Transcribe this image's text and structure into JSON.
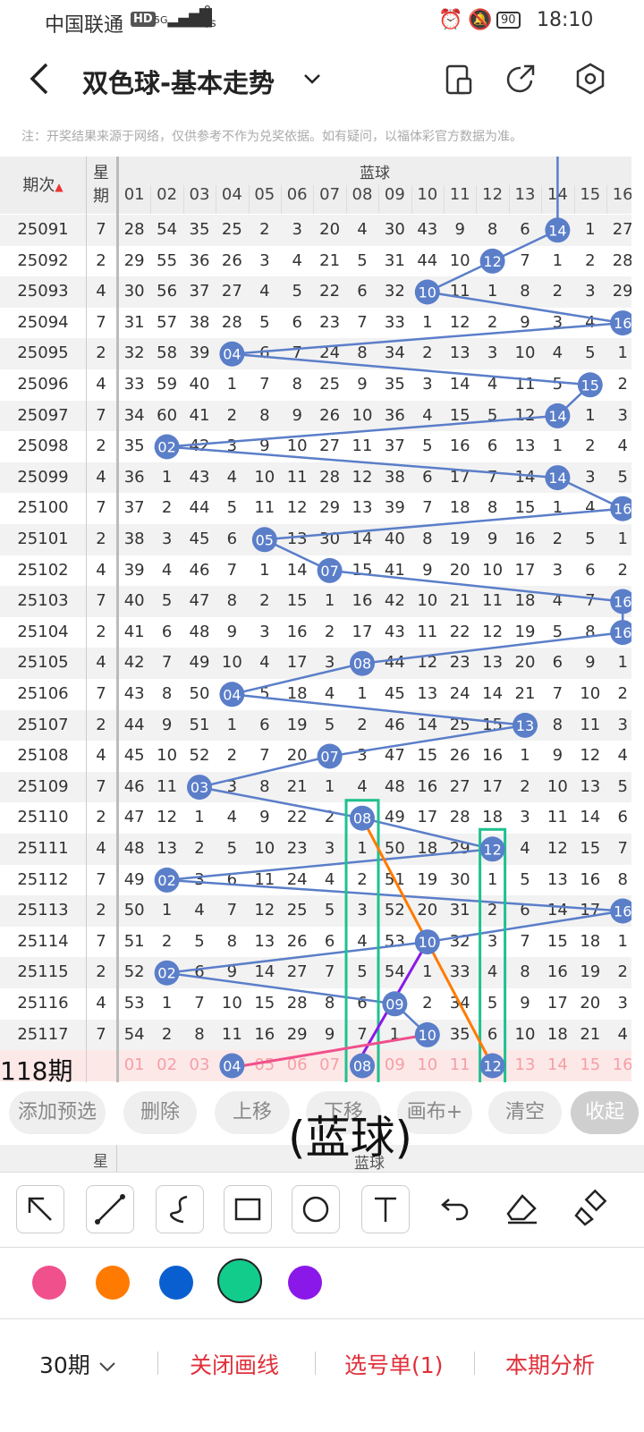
{
  "status": {
    "carrier": "中国联通",
    "hd": "HD",
    "net": "5G",
    "speed_value": "0",
    "speed_unit": "K/s",
    "battery": "90",
    "time": "18:10"
  },
  "header": {
    "title": "双色球-基本走势",
    "icons": [
      "back-icon",
      "dropdown-chevron-icon",
      "device-icon",
      "share-icon",
      "settings-icon"
    ]
  },
  "note": "注：开奖结果来源于网络，仅供参考不作为兑奖依据。如有疑问，以福体彩官方数据为准。",
  "table": {
    "col_period": "期次",
    "col_week": "星期",
    "section": "蓝球",
    "ball_headers": [
      "01",
      "02",
      "03",
      "04",
      "05",
      "06",
      "07",
      "08",
      "09",
      "10",
      "11",
      "12",
      "13",
      "14",
      "15",
      "16"
    ],
    "rows": [
      {
        "p": "25091",
        "w": "7",
        "v": [
          "28",
          "54",
          "35",
          "25",
          "2",
          "3",
          "20",
          "4",
          "30",
          "43",
          "9",
          "8",
          "6",
          "14",
          "1",
          "27"
        ],
        "hit": 14
      },
      {
        "p": "25092",
        "w": "2",
        "v": [
          "29",
          "55",
          "36",
          "26",
          "3",
          "4",
          "21",
          "5",
          "31",
          "44",
          "10",
          "12",
          "7",
          "1",
          "2",
          "28"
        ],
        "hit": 12
      },
      {
        "p": "25093",
        "w": "4",
        "v": [
          "30",
          "56",
          "37",
          "27",
          "4",
          "5",
          "22",
          "6",
          "32",
          "10",
          "11",
          "1",
          "8",
          "2",
          "3",
          "29"
        ],
        "hit": 10
      },
      {
        "p": "25094",
        "w": "7",
        "v": [
          "31",
          "57",
          "38",
          "28",
          "5",
          "6",
          "23",
          "7",
          "33",
          "1",
          "12",
          "2",
          "9",
          "3",
          "4",
          "16"
        ],
        "hit": 16
      },
      {
        "p": "25095",
        "w": "2",
        "v": [
          "32",
          "58",
          "39",
          "04",
          "6",
          "7",
          "24",
          "8",
          "34",
          "2",
          "13",
          "3",
          "10",
          "4",
          "5",
          "1"
        ],
        "hit": 4
      },
      {
        "p": "25096",
        "w": "4",
        "v": [
          "33",
          "59",
          "40",
          "1",
          "7",
          "8",
          "25",
          "9",
          "35",
          "3",
          "14",
          "4",
          "11",
          "5",
          "15",
          "2"
        ],
        "hit": 15
      },
      {
        "p": "25097",
        "w": "7",
        "v": [
          "34",
          "60",
          "41",
          "2",
          "8",
          "9",
          "26",
          "10",
          "36",
          "4",
          "15",
          "5",
          "12",
          "14",
          "1",
          "3"
        ],
        "hit": 14
      },
      {
        "p": "25098",
        "w": "2",
        "v": [
          "35",
          "02",
          "42",
          "3",
          "9",
          "10",
          "27",
          "11",
          "37",
          "5",
          "16",
          "6",
          "13",
          "1",
          "2",
          "4"
        ],
        "hit": 2
      },
      {
        "p": "25099",
        "w": "4",
        "v": [
          "36",
          "1",
          "43",
          "4",
          "10",
          "11",
          "28",
          "12",
          "38",
          "6",
          "17",
          "7",
          "14",
          "14",
          "3",
          "5"
        ],
        "hit": 14
      },
      {
        "p": "25100",
        "w": "7",
        "v": [
          "37",
          "2",
          "44",
          "5",
          "11",
          "12",
          "29",
          "13",
          "39",
          "7",
          "18",
          "8",
          "15",
          "1",
          "4",
          "16"
        ],
        "hit": 16
      },
      {
        "p": "25101",
        "w": "2",
        "v": [
          "38",
          "3",
          "45",
          "6",
          "05",
          "13",
          "30",
          "14",
          "40",
          "8",
          "19",
          "9",
          "16",
          "2",
          "5",
          "1"
        ],
        "hit": 5
      },
      {
        "p": "25102",
        "w": "4",
        "v": [
          "39",
          "4",
          "46",
          "7",
          "1",
          "14",
          "07",
          "15",
          "41",
          "9",
          "20",
          "10",
          "17",
          "3",
          "6",
          "2"
        ],
        "hit": 7
      },
      {
        "p": "25103",
        "w": "7",
        "v": [
          "40",
          "5",
          "47",
          "8",
          "2",
          "15",
          "1",
          "16",
          "42",
          "10",
          "21",
          "11",
          "18",
          "4",
          "7",
          "16"
        ],
        "hit": 16
      },
      {
        "p": "25104",
        "w": "2",
        "v": [
          "41",
          "6",
          "48",
          "9",
          "3",
          "16",
          "2",
          "17",
          "43",
          "11",
          "22",
          "12",
          "19",
          "5",
          "8",
          "16"
        ],
        "hit": 16
      },
      {
        "p": "25105",
        "w": "4",
        "v": [
          "42",
          "7",
          "49",
          "10",
          "4",
          "17",
          "3",
          "08",
          "44",
          "12",
          "23",
          "13",
          "20",
          "6",
          "9",
          "1"
        ],
        "hit": 8
      },
      {
        "p": "25106",
        "w": "7",
        "v": [
          "43",
          "8",
          "50",
          "04",
          "5",
          "18",
          "4",
          "1",
          "45",
          "13",
          "24",
          "14",
          "21",
          "7",
          "10",
          "2"
        ],
        "hit": 4
      },
      {
        "p": "25107",
        "w": "2",
        "v": [
          "44",
          "9",
          "51",
          "1",
          "6",
          "19",
          "5",
          "2",
          "46",
          "14",
          "25",
          "15",
          "13",
          "8",
          "11",
          "3"
        ],
        "hit": 13
      },
      {
        "p": "25108",
        "w": "4",
        "v": [
          "45",
          "10",
          "52",
          "2",
          "7",
          "20",
          "07",
          "3",
          "47",
          "15",
          "26",
          "16",
          "1",
          "9",
          "12",
          "4"
        ],
        "hit": 7
      },
      {
        "p": "25109",
        "w": "7",
        "v": [
          "46",
          "11",
          "03",
          "3",
          "8",
          "21",
          "1",
          "4",
          "48",
          "16",
          "27",
          "17",
          "2",
          "10",
          "13",
          "5"
        ],
        "hit": 3
      },
      {
        "p": "25110",
        "w": "2",
        "v": [
          "47",
          "12",
          "1",
          "4",
          "9",
          "22",
          "2",
          "08",
          "49",
          "17",
          "28",
          "18",
          "3",
          "11",
          "14",
          "6"
        ],
        "hit": 8
      },
      {
        "p": "25111",
        "w": "4",
        "v": [
          "48",
          "13",
          "2",
          "5",
          "10",
          "23",
          "3",
          "1",
          "50",
          "18",
          "29",
          "12",
          "4",
          "12",
          "15",
          "7"
        ],
        "hit": 12
      },
      {
        "p": "25112",
        "w": "7",
        "v": [
          "49",
          "02",
          "3",
          "6",
          "11",
          "24",
          "4",
          "2",
          "51",
          "19",
          "30",
          "1",
          "5",
          "13",
          "16",
          "8"
        ],
        "hit": 2
      },
      {
        "p": "25113",
        "w": "2",
        "v": [
          "50",
          "1",
          "4",
          "7",
          "12",
          "25",
          "5",
          "3",
          "52",
          "20",
          "31",
          "2",
          "6",
          "14",
          "17",
          "16"
        ],
        "hit": 16
      },
      {
        "p": "25114",
        "w": "7",
        "v": [
          "51",
          "2",
          "5",
          "8",
          "13",
          "26",
          "6",
          "4",
          "53",
          "10",
          "32",
          "3",
          "7",
          "15",
          "18",
          "1"
        ],
        "hit": 10
      },
      {
        "p": "25115",
        "w": "2",
        "v": [
          "52",
          "02",
          "6",
          "9",
          "14",
          "27",
          "7",
          "5",
          "54",
          "1",
          "33",
          "4",
          "8",
          "16",
          "19",
          "2"
        ],
        "hit": 2
      },
      {
        "p": "25116",
        "w": "4",
        "v": [
          "53",
          "1",
          "7",
          "10",
          "15",
          "28",
          "8",
          "6",
          "09",
          "2",
          "34",
          "5",
          "9",
          "17",
          "20",
          "3"
        ],
        "hit": 9
      },
      {
        "p": "25117",
        "w": "7",
        "v": [
          "54",
          "2",
          "8",
          "11",
          "16",
          "29",
          "9",
          "7",
          "1",
          "10",
          "35",
          "6",
          "10",
          "18",
          "21",
          "4"
        ],
        "hit": 10
      }
    ],
    "prediction_label": "118期",
    "prediction_values": [
      "01",
      "02",
      "03",
      "04",
      "05",
      "06",
      "07",
      "08",
      "09",
      "10",
      "11",
      "12",
      "13",
      "14",
      "15",
      "16"
    ],
    "prediction_hits": [
      4,
      8,
      12
    ]
  },
  "buttons": [
    "添加预选",
    "删除",
    "上移",
    "下移",
    "画布+",
    "清空"
  ],
  "collapse": "收起",
  "overlay_text": "(蓝球)",
  "header2": {
    "week": "星",
    "section": "蓝球"
  },
  "draw_tools": [
    "arrow-tool-icon",
    "line-tool-icon",
    "curve-tool-icon",
    "rectangle-tool-icon",
    "circle-tool-icon",
    "text-tool-icon",
    "undo-icon",
    "eraser-icon",
    "clear-brush-icon"
  ],
  "palette": [
    "#f0508c",
    "#ff7a00",
    "#0a5fd0",
    "#12cc8c",
    "#8a18e8"
  ],
  "bottom": {
    "period": "30期",
    "close_line": "关闭画线",
    "pick_list": "选号单(1)",
    "analysis": "本期分析"
  }
}
